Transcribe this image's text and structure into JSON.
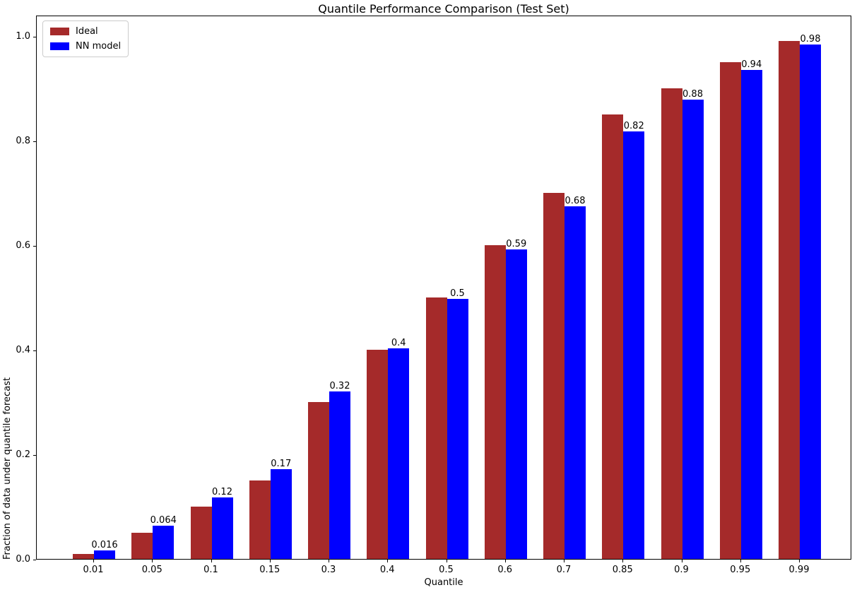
{
  "chart_data": {
    "type": "bar",
    "title": "Quantile Performance Comparison (Test Set)",
    "xlabel": "Quantile",
    "ylabel": "Fraction of data under quantile forecast",
    "categories": [
      "0.01",
      "0.05",
      "0.1",
      "0.15",
      "0.3",
      "0.4",
      "0.5",
      "0.6",
      "0.7",
      "0.85",
      "0.9",
      "0.95",
      "0.99"
    ],
    "series": [
      {
        "name": "Ideal",
        "color": "#A52A2A",
        "values": [
          0.01,
          0.05,
          0.1,
          0.15,
          0.3,
          0.4,
          0.5,
          0.6,
          0.7,
          0.85,
          0.9,
          0.95,
          0.99
        ]
      },
      {
        "name": "NN model",
        "color": "#0000FF",
        "values": [
          0.016,
          0.064,
          0.117,
          0.171,
          0.32,
          0.403,
          0.497,
          0.592,
          0.675,
          0.818,
          0.878,
          0.935,
          0.984
        ]
      }
    ],
    "bar_labels": [
      "0.016",
      "0.064",
      "0.12",
      "0.17",
      "0.32",
      "0.4",
      "0.5",
      "0.59",
      "0.68",
      "0.82",
      "0.88",
      "0.94",
      "0.98"
    ],
    "yticks": [
      "0.0",
      "0.2",
      "0.4",
      "0.6",
      "0.8",
      "1.0"
    ],
    "ylim": [
      0,
      1.04
    ],
    "grid": false,
    "legend_position": "upper left",
    "text_color": "#000000",
    "axis_color": "#000000",
    "background_color": "#ffffff"
  }
}
